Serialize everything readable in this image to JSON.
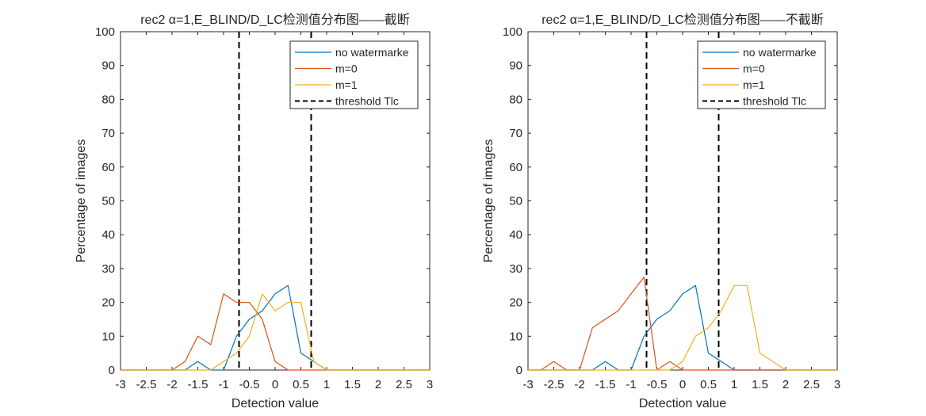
{
  "chart_data": [
    {
      "type": "line",
      "title": "rec2 α=1,E_BLIND/D_LC检测值分布图——截断",
      "xlabel": "Detection value",
      "ylabel": "Percentage of images",
      "xlim": [
        -3,
        3
      ],
      "ylim": [
        0,
        100
      ],
      "xticks": [
        "-3",
        "-2.5",
        "-2",
        "-1.5",
        "-1",
        "-0.5",
        "0",
        "0.5",
        "1",
        "1.5",
        "2",
        "2.5",
        "3"
      ],
      "yticks": [
        "0",
        "10",
        "20",
        "30",
        "40",
        "50",
        "60",
        "70",
        "80",
        "90",
        "100"
      ],
      "legend_position": "top-right",
      "thresholds": {
        "name": "threshold Tlc",
        "x": [
          -0.7,
          0.7
        ],
        "color": "#000000"
      },
      "series": [
        {
          "name": "no watermarke",
          "color": "#0072BD",
          "x": [
            -3,
            -2.75,
            -2.5,
            -2.25,
            -2,
            -1.75,
            -1.5,
            -1.25,
            -1,
            -0.75,
            -0.5,
            -0.25,
            0,
            0.25,
            0.5,
            0.75,
            1,
            1.25,
            1.5,
            1.75,
            2,
            2.25,
            2.5,
            2.75,
            3
          ],
          "y": [
            0,
            0,
            0,
            0,
            0,
            0,
            2.5,
            0,
            0,
            10,
            15,
            17.5,
            22.5,
            25,
            5,
            2.5,
            0,
            0,
            0,
            0,
            0,
            0,
            0,
            0,
            0
          ]
        },
        {
          "name": "m=0",
          "color": "#D95319",
          "x": [
            -3,
            -2.75,
            -2.5,
            -2.25,
            -2,
            -1.75,
            -1.5,
            -1.25,
            -1,
            -0.75,
            -0.5,
            -0.25,
            0,
            0.25,
            0.5,
            0.75,
            1,
            1.25,
            1.5,
            1.75,
            2,
            2.25,
            2.5,
            2.75,
            3
          ],
          "y": [
            0,
            0,
            0,
            0,
            0,
            2.5,
            10,
            7.5,
            22.5,
            20,
            20,
            15,
            2.5,
            0,
            0,
            0,
            0,
            0,
            0,
            0,
            0,
            0,
            0,
            0,
            0
          ]
        },
        {
          "name": "m=1",
          "color": "#EDB120",
          "x": [
            -3,
            -2.75,
            -2.5,
            -2.25,
            -2,
            -1.75,
            -1.5,
            -1.25,
            -1,
            -0.75,
            -0.5,
            -0.25,
            0,
            0.25,
            0.5,
            0.75,
            1,
            1.25,
            1.5,
            1.75,
            2,
            2.25,
            2.5,
            2.75,
            3
          ],
          "y": [
            0,
            0,
            0,
            0,
            0,
            0,
            0,
            0,
            2.5,
            5,
            10,
            22.5,
            17.5,
            20,
            20,
            2.5,
            0,
            0,
            0,
            0,
            0,
            0,
            0,
            0,
            0
          ]
        }
      ]
    },
    {
      "type": "line",
      "title": "rec2 α=1,E_BLIND/D_LC检测值分布图——不截断",
      "xlabel": "Detection value",
      "ylabel": "Percentage of images",
      "xlim": [
        -3,
        3
      ],
      "ylim": [
        0,
        100
      ],
      "xticks": [
        "-3",
        "-2.5",
        "-2",
        "-1.5",
        "-1",
        "-0.5",
        "0",
        "0.5",
        "1",
        "1.5",
        "2",
        "2.5",
        "3"
      ],
      "yticks": [
        "0",
        "10",
        "20",
        "30",
        "40",
        "50",
        "60",
        "70",
        "80",
        "90",
        "100"
      ],
      "legend_position": "top-right",
      "thresholds": {
        "name": "threshold Tlc",
        "x": [
          -0.7,
          0.7
        ],
        "color": "#000000"
      },
      "series": [
        {
          "name": "no watermarke",
          "color": "#0072BD",
          "x": [
            -3,
            -2.75,
            -2.5,
            -2.25,
            -2,
            -1.75,
            -1.5,
            -1.25,
            -1,
            -0.75,
            -0.5,
            -0.25,
            0,
            0.25,
            0.5,
            0.75,
            1,
            1.25,
            1.5,
            1.75,
            2,
            2.25,
            2.5,
            2.75,
            3
          ],
          "y": [
            0,
            0,
            0,
            0,
            0,
            0,
            2.5,
            0,
            0,
            10,
            15,
            17.5,
            22.5,
            25,
            5,
            2.5,
            0,
            0,
            0,
            0,
            0,
            0,
            0,
            0,
            0
          ]
        },
        {
          "name": "m=0",
          "color": "#D95319",
          "x": [
            -3,
            -2.75,
            -2.5,
            -2.25,
            -2,
            -1.75,
            -1.5,
            -1.25,
            -1,
            -0.75,
            -0.5,
            -0.25,
            0,
            0.25,
            0.5,
            0.75,
            1,
            1.25,
            1.5,
            1.75,
            2,
            2.25,
            2.5,
            2.75,
            3
          ],
          "y": [
            0,
            0,
            2.5,
            0,
            0,
            12.5,
            15,
            17.5,
            22.5,
            27.5,
            0,
            2.5,
            0,
            0,
            0,
            0,
            0,
            0,
            0,
            0,
            0,
            0,
            0,
            0,
            0
          ]
        },
        {
          "name": "m=1",
          "color": "#EDB120",
          "x": [
            -3,
            -2.75,
            -2.5,
            -2.25,
            -2,
            -1.75,
            -1.5,
            -1.25,
            -1,
            -0.75,
            -0.5,
            -0.25,
            0,
            0.25,
            0.5,
            0.75,
            1,
            1.25,
            1.5,
            1.75,
            2,
            2.25,
            2.5,
            2.75,
            3
          ],
          "y": [
            0,
            0,
            0,
            0,
            0,
            0,
            0,
            0,
            0,
            0,
            0,
            0,
            2.5,
            10,
            12.5,
            17.5,
            25,
            25,
            5,
            2.5,
            0,
            0,
            0,
            0,
            0
          ]
        }
      ]
    }
  ]
}
